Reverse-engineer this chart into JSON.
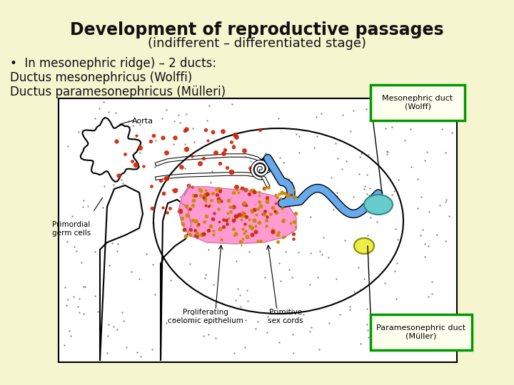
{
  "background_color": "#f5f5d0",
  "title_line1": "Development of reproductive passages",
  "title_line2": "(indifferent – differentiated stage)",
  "title_fontsize": 17,
  "subtitle_fontsize": 13,
  "title_color": "#111111",
  "bullet_text_line1": "•  In mesonephric ridge) – 2 ducts:",
  "bullet_text_line2": "Ductus mesonephricus (Wolffi)",
  "bullet_text_line3": "Ductus paramesonephricus (Mülleri)",
  "bullet_fontsize": 12,
  "label_box1_text": "Mesonephric duct\n(Wolff)",
  "label_box2_text": "Paramesonephric duct\n(Müller)",
  "label_aorta": "Aorta",
  "label_germ": "Primordial\ngerm cells",
  "label_coelomic": "Proliferating\ncoelomic epithelium",
  "label_sex_cords": "Primitive\nsex cords",
  "box_edge_color": "#009900",
  "dot_color_dark": "#555555",
  "dot_color_red": "#cc2200",
  "dot_color_orange": "#cc8800",
  "pink_color": "#ff88cc",
  "blue_duct_color": "#66aaee",
  "teal_color": "#66cccc",
  "yellow_color": "#eeee44"
}
